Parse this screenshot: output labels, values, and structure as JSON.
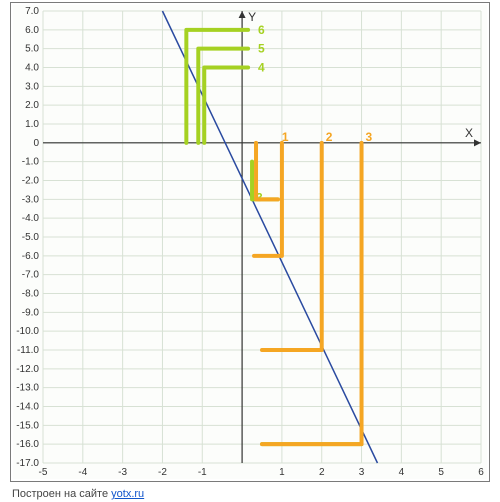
{
  "chart": {
    "type": "line",
    "axis_titles": {
      "x": "X",
      "y": "Y"
    },
    "xlim": [
      -5,
      6
    ],
    "ylim": [
      -17,
      7
    ],
    "xtick_step": 1,
    "ytick_step": 1,
    "xtick_labels": [
      "-5",
      "-4",
      "-3",
      "-2",
      "-1",
      "0",
      "1",
      "2",
      "3",
      "4",
      "5",
      "6"
    ],
    "ytick_labels": [
      "-17.0",
      "-16.0",
      "-15.0",
      "-14.0",
      "-13.0",
      "-12.0",
      "-11.0",
      "-10.0",
      "-9.0",
      "-8.0",
      "-7.0",
      "-6.0",
      "-5.0",
      "-4.0",
      "-3.0",
      "-2.0",
      "-1.0",
      "0",
      "1.0",
      "2.0",
      "3.0",
      "4.0",
      "5.0",
      "6.0",
      "7.0"
    ],
    "background_color": "#fcfdfb",
    "grid_color": "#d7e1d4",
    "grid_on": true,
    "axis_color": "#333333",
    "main_line": {
      "color": "#2a4aa0",
      "width": 1.5,
      "points": [
        [
          -2,
          7
        ],
        [
          3.4,
          -17
        ]
      ]
    },
    "orange_series": {
      "color": "#f5a623",
      "width": 4,
      "labels": [
        {
          "text": "1",
          "x": 0.9,
          "y": 0.3
        },
        {
          "text": "2",
          "x": 2.0,
          "y": 0.3
        },
        {
          "text": "3",
          "x": 3.0,
          "y": 0.3
        }
      ],
      "polylines": [
        [
          [
            0.35,
            0
          ],
          [
            0.35,
            -3
          ],
          [
            0.9,
            -3
          ]
        ],
        [
          [
            1,
            0
          ],
          [
            1,
            -6
          ],
          [
            0.3,
            -6
          ]
        ],
        [
          [
            2,
            0
          ],
          [
            2,
            -11
          ],
          [
            0.5,
            -11
          ]
        ],
        [
          [
            3,
            0
          ],
          [
            3,
            -16
          ],
          [
            0.5,
            -16
          ]
        ]
      ]
    },
    "green_series": {
      "color": "#a5d122",
      "width": 4,
      "labels": [
        {
          "text": "6",
          "x": 0.3,
          "y": 6
        },
        {
          "text": "5",
          "x": 0.3,
          "y": 5
        },
        {
          "text": "4",
          "x": 0.3,
          "y": 4
        },
        {
          "text": "-3",
          "x": 0.15,
          "y": -2.9
        }
      ],
      "polylines": [
        [
          [
            -1.4,
            0
          ],
          [
            -1.4,
            6
          ],
          [
            0.15,
            6
          ]
        ],
        [
          [
            -1.1,
            0
          ],
          [
            -1.1,
            5
          ],
          [
            0.15,
            5
          ]
        ],
        [
          [
            -0.95,
            0
          ],
          [
            -0.95,
            4
          ],
          [
            0.15,
            4
          ]
        ],
        [
          [
            0.25,
            -1
          ],
          [
            0.25,
            -3
          ],
          [
            0.9,
            -3
          ]
        ],
        [
          [
            0.5,
            -16
          ],
          [
            3,
            -16
          ]
        ]
      ]
    }
  },
  "footer": {
    "prefix": "Построен на сайте ",
    "link_text": "yotx.ru",
    "link_href": "#"
  }
}
